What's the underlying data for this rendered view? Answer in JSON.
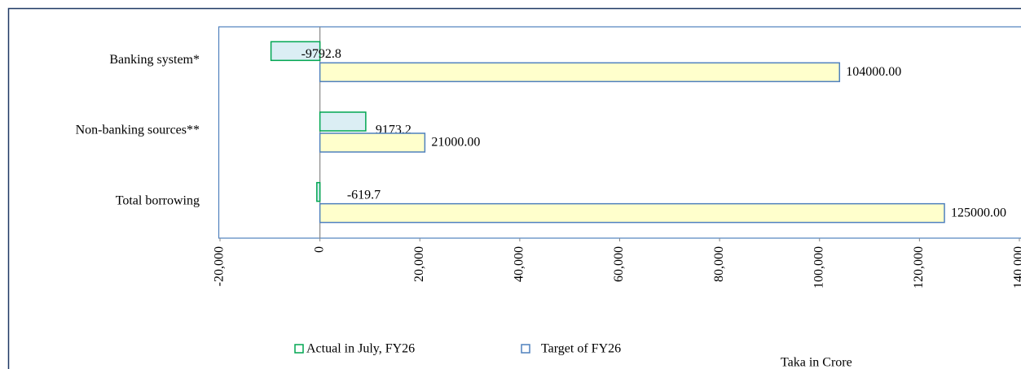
{
  "chart_data": {
    "type": "bar",
    "orientation": "horizontal",
    "categories": [
      "Banking system*",
      "Non-banking sources**",
      "Total borrowing"
    ],
    "series": [
      {
        "name": "Actual in July, FY26",
        "color": "#dbeef4",
        "edge_color": "#00a651",
        "values": [
          -9792.8,
          9173.2,
          -619.7
        ],
        "value_labels": [
          "-9792.8",
          "9173.2",
          "-619.7"
        ]
      },
      {
        "name": "Target of FY26",
        "color": "#ffffcc",
        "edge_color": "#4f81bd",
        "values": [
          104000,
          21000,
          125000
        ],
        "value_labels": [
          "104000.00",
          "21000.00",
          "125000.00"
        ]
      }
    ],
    "xlim": [
      -20000,
      140000
    ],
    "xticks": [
      {
        "value": -20000,
        "label": "-20,000"
      },
      0,
      {
        "value": 20000,
        "label": "20,000"
      },
      {
        "value": 40000,
        "label": "40,000"
      },
      {
        "value": 60000,
        "label": "60,000"
      },
      {
        "value": 80000,
        "label": "80,000"
      },
      {
        "value": 100000,
        "label": "100,000"
      },
      {
        "value": 120000,
        "label": "120,000"
      },
      {
        "value": 140000,
        "label": "140,000"
      }
    ],
    "grid": false,
    "legend": "bottom",
    "note": "Taka in Crore"
  }
}
